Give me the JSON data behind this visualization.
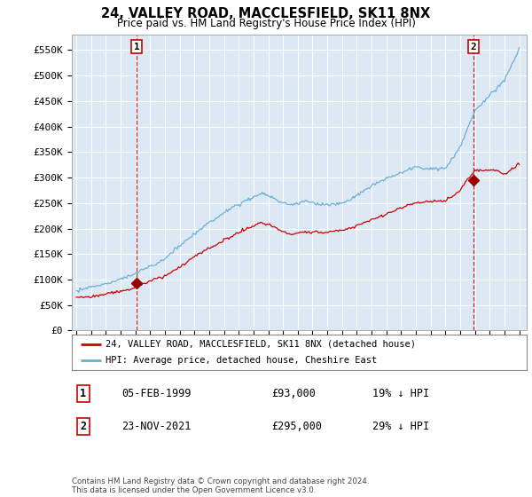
{
  "title_line1": "24, VALLEY ROAD, MACCLESFIELD, SK11 8NX",
  "title_line2": "Price paid vs. HM Land Registry's House Price Index (HPI)",
  "ylabel_ticks": [
    "£0",
    "£50K",
    "£100K",
    "£150K",
    "£200K",
    "£250K",
    "£300K",
    "£350K",
    "£400K",
    "£450K",
    "£500K",
    "£550K"
  ],
  "ytick_values": [
    0,
    50000,
    100000,
    150000,
    200000,
    250000,
    300000,
    350000,
    400000,
    450000,
    500000,
    550000
  ],
  "ylim": [
    0,
    580000
  ],
  "xlim_start": 1994.7,
  "xlim_end": 2025.5,
  "bg_color": "#ffffff",
  "plot_bg_color": "#dce9f5",
  "grid_color": "#ffffff",
  "hpi_color": "#6baed6",
  "price_color": "#cc0000",
  "marker_color": "#990000",
  "annotation_box_color": "#cc0000",
  "legend_entry1": "24, VALLEY ROAD, MACCLESFIELD, SK11 8NX (detached house)",
  "legend_entry2": "HPI: Average price, detached house, Cheshire East",
  "sale1_label": "1",
  "sale1_date": "05-FEB-1999",
  "sale1_price": "£93,000",
  "sale1_hpi": "19% ↓ HPI",
  "sale1_year": 1999.1,
  "sale1_value": 93000,
  "sale2_label": "2",
  "sale2_date": "23-NOV-2021",
  "sale2_price": "£295,000",
  "sale2_hpi": "29% ↓ HPI",
  "sale2_year": 2021.9,
  "sale2_value": 295000,
  "footnote": "Contains HM Land Registry data © Crown copyright and database right 2024.\nThis data is licensed under the Open Government Licence v3.0.",
  "xtick_years": [
    1995,
    1996,
    1997,
    1998,
    1999,
    2000,
    2001,
    2002,
    2003,
    2004,
    2005,
    2006,
    2007,
    2008,
    2009,
    2010,
    2011,
    2012,
    2013,
    2014,
    2015,
    2016,
    2017,
    2018,
    2019,
    2020,
    2021,
    2022,
    2023,
    2024,
    2025
  ]
}
